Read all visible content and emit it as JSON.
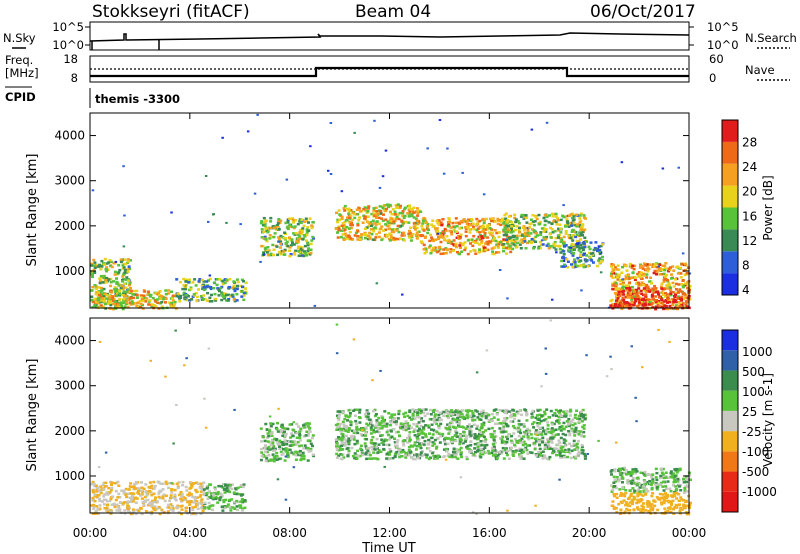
{
  "header": {
    "station": "Stokkseyri (fitACF)",
    "beam": "Beam 04",
    "date": "06/Oct/2017"
  },
  "noise_panel": {
    "left_label": "N.Sky",
    "right_label": "N.Search",
    "left_ticks": [
      "10^5",
      "10^0"
    ],
    "right_ticks": [
      "10^5",
      "10^0"
    ]
  },
  "freq_panel": {
    "label_line1": "Freq.",
    "label_line2": "[MHz]",
    "right_label": "Nave",
    "left_ticks": [
      "18",
      "8"
    ],
    "right_ticks": [
      "60",
      "0"
    ]
  },
  "cpid": {
    "label": "CPID",
    "value": "themis -3300"
  },
  "axes": {
    "ylabel": "Slant Range [km]",
    "xlabel": "Time UT",
    "x_ticks": [
      "00:00",
      "04:00",
      "08:00",
      "12:00",
      "16:00",
      "20:00",
      "00:00"
    ],
    "y_ticks": [
      "1000",
      "2000",
      "3000",
      "4000"
    ]
  },
  "colorbars": {
    "power": {
      "label": "Power [dB]",
      "ticks": [
        "4",
        "8",
        "12",
        "16",
        "20",
        "24",
        "28"
      ],
      "colors": [
        "#1c2fe0",
        "#2f5fd8",
        "#3a8a55",
        "#58c23b",
        "#e8d21c",
        "#f5a020",
        "#ee6a18",
        "#e11c1c"
      ]
    },
    "velocity": {
      "label": "Velocity [m s-1]",
      "ticks": [
        "1000",
        "500",
        "100",
        "25",
        "-25",
        "-100",
        "-500",
        "-1000"
      ],
      "colors": [
        "#1c2fe0",
        "#2f60a8",
        "#3c8c4e",
        "#58c23b",
        "#c8c8c0",
        "#f0b020",
        "#f07818",
        "#e82a18",
        "#e01818"
      ]
    }
  },
  "chart_data": [
    {
      "type": "heatmap",
      "title": "Power",
      "x_range_hours": [
        0,
        24
      ],
      "y_range_km": [
        180,
        4500
      ],
      "colorbar_label": "Power [dB]",
      "colorbar_range": [
        0,
        30
      ],
      "echo_regions": [
        {
          "t0": 0.0,
          "t1": 1.6,
          "r0": 180,
          "r1": 1300,
          "power_db": 14
        },
        {
          "t0": 0.0,
          "t1": 3.5,
          "r0": 180,
          "r1": 600,
          "power_db": 18
        },
        {
          "t0": 3.4,
          "t1": 6.2,
          "r0": 350,
          "r1": 850,
          "power_db": 12
        },
        {
          "t0": 6.8,
          "t1": 8.9,
          "r0": 1350,
          "r1": 2200,
          "power_db": 14
        },
        {
          "t0": 9.8,
          "t1": 13.2,
          "r0": 1700,
          "r1": 2500,
          "power_db": 18
        },
        {
          "t0": 13.2,
          "t1": 16.8,
          "r0": 1400,
          "r1": 2200,
          "power_db": 20
        },
        {
          "t0": 16.5,
          "t1": 19.8,
          "r0": 1500,
          "r1": 2300,
          "power_db": 14
        },
        {
          "t0": 18.8,
          "t1": 20.5,
          "r0": 1100,
          "r1": 1700,
          "power_db": 10
        },
        {
          "t0": 20.8,
          "t1": 24.0,
          "r0": 180,
          "r1": 1200,
          "power_db": 20
        },
        {
          "t0": 20.8,
          "t1": 24.0,
          "r0": 180,
          "r1": 650,
          "power_db": 27
        }
      ]
    },
    {
      "type": "heatmap",
      "title": "Velocity",
      "x_range_hours": [
        0,
        24
      ],
      "y_range_km": [
        180,
        4500
      ],
      "colorbar_label": "Velocity [m s-1]",
      "colorbar_range": [
        -1000,
        1000
      ],
      "echo_regions": [
        {
          "t0": 0.0,
          "t1": 4.5,
          "r0": 180,
          "r1": 900,
          "velocity": -100
        },
        {
          "t0": 4.5,
          "t1": 6.2,
          "r0": 250,
          "r1": 850,
          "velocity": 0
        },
        {
          "t0": 6.8,
          "t1": 8.9,
          "r0": 1350,
          "r1": 2200,
          "velocity": 0
        },
        {
          "t0": 9.8,
          "t1": 19.8,
          "r0": 1400,
          "r1": 2500,
          "velocity": 0
        },
        {
          "t0": 20.8,
          "t1": 24.0,
          "r0": 650,
          "r1": 1200,
          "velocity": 0
        },
        {
          "t0": 20.8,
          "t1": 24.0,
          "r0": 180,
          "r1": 650,
          "velocity": -200
        }
      ]
    }
  ]
}
